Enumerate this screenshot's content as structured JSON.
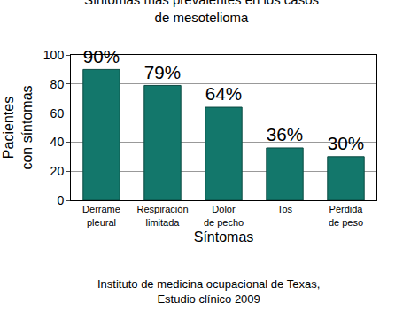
{
  "chart_data": {
    "type": "bar",
    "title": "Síntomas más prevalentes en los casos\nde mesotelioma",
    "x_label": "Síntomas",
    "y_label": "Pacientes\ncon síntomas",
    "categories": [
      "Derrame\npleural",
      "Respiración\nlimitada",
      "Dolor\nde pecho",
      "Tos",
      "Pérdida\nde peso"
    ],
    "values": [
      90,
      79,
      64,
      36,
      30
    ],
    "value_labels": [
      "90%",
      "79%",
      "64%",
      "36%",
      "30%"
    ],
    "data_labels": true,
    "color": "#13776b",
    "ylim": [
      0,
      100
    ],
    "yticks": [
      0,
      20,
      40,
      60,
      80,
      100
    ],
    "grid": true,
    "annotations": [
      "Instituto de medicina ocupacional de Texas,\nEstudio clínico 2009"
    ]
  }
}
